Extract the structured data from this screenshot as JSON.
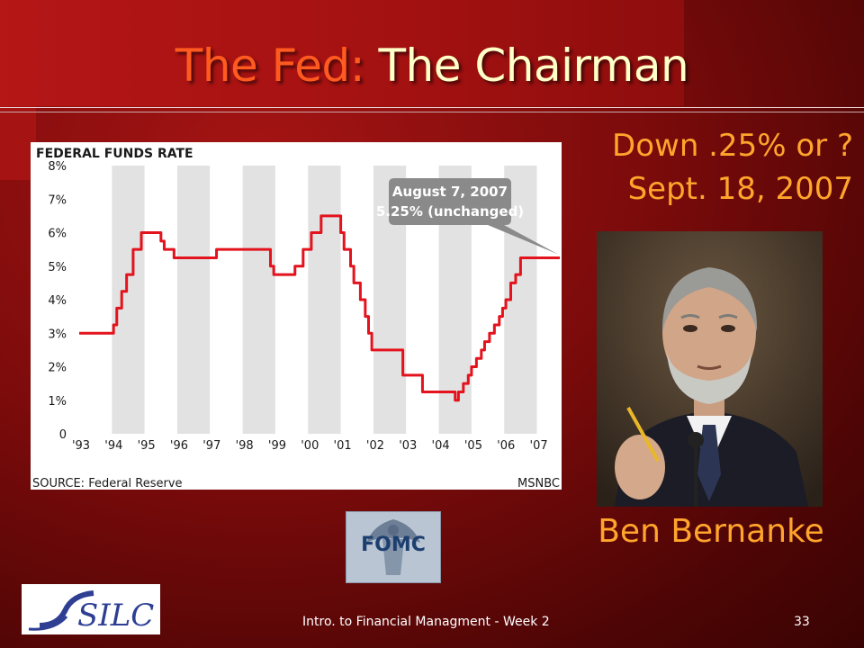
{
  "slide": {
    "title_part1": "The Fed:",
    "title_part2": "The Chairman",
    "caption_line1": "Down .25% or ?",
    "caption_line2": "Sept. 18, 2007",
    "person_name": "Ben Bernanke",
    "fomc_label": "FOMC",
    "footer": "Intro. to Financial Managment - Week 2",
    "page_number": "33",
    "logo_text": "SILC"
  },
  "colors": {
    "background": "#7c0b0b",
    "title_accent": "#ff5a1f",
    "title_main": "#ffffc8",
    "caption": "#ffa52c",
    "chart_line": "#e4121c",
    "callout": "#8a8a8a"
  },
  "chart_data": {
    "type": "line",
    "title": "FEDERAL FUNDS RATE",
    "source": "SOURCE: Federal Reserve",
    "credit": "MSNBC",
    "ylim": [
      0,
      8
    ],
    "xlim": [
      1993,
      2007.7
    ],
    "y_ticks": [
      "0",
      "1%",
      "2%",
      "3%",
      "4%",
      "5%",
      "6%",
      "7%",
      "8%"
    ],
    "x_ticks": [
      "'93",
      "'94",
      "'95",
      "'96",
      "'97",
      "'98",
      "'99",
      "'00",
      "'01",
      "'02",
      "'03",
      "'04",
      "'05",
      "'06",
      "'07"
    ],
    "grid": "alternating vertical bands",
    "annotation": {
      "line1": "August 7, 2007",
      "line2": "5.25% (unchanged)"
    },
    "series": [
      {
        "x": [
          1993.0,
          1994.05,
          1994.15,
          1994.3,
          1994.45,
          1994.65,
          1994.9,
          1995.5,
          1995.6,
          1995.9,
          1996.1,
          1997.2,
          1998.7,
          1998.85,
          1998.95,
          1999.4,
          1999.6,
          1999.85,
          2000.1,
          2000.4,
          2000.6,
          2001.0,
          2001.1,
          2001.3,
          2001.4,
          2001.6,
          2001.75,
          2001.85,
          2001.95,
          2002.9,
          2003.5,
          2004.5,
          2004.6,
          2004.75,
          2004.9,
          2005.0,
          2005.15,
          2005.3,
          2005.4,
          2005.55,
          2005.7,
          2005.85,
          2005.95,
          2006.05,
          2006.2,
          2006.35,
          2006.5,
          2007.7
        ],
        "y": [
          3.0,
          3.25,
          3.75,
          4.25,
          4.75,
          5.5,
          6.0,
          5.75,
          5.5,
          5.25,
          5.25,
          5.5,
          5.5,
          5.0,
          4.75,
          4.75,
          5.0,
          5.5,
          6.0,
          6.5,
          6.5,
          6.0,
          5.5,
          5.0,
          4.5,
          4.0,
          3.5,
          3.0,
          2.5,
          1.75,
          1.25,
          1.0,
          1.25,
          1.5,
          1.75,
          2.0,
          2.25,
          2.5,
          2.75,
          3.0,
          3.25,
          3.5,
          3.75,
          4.0,
          4.5,
          4.75,
          5.25,
          5.25
        ]
      }
    ]
  }
}
